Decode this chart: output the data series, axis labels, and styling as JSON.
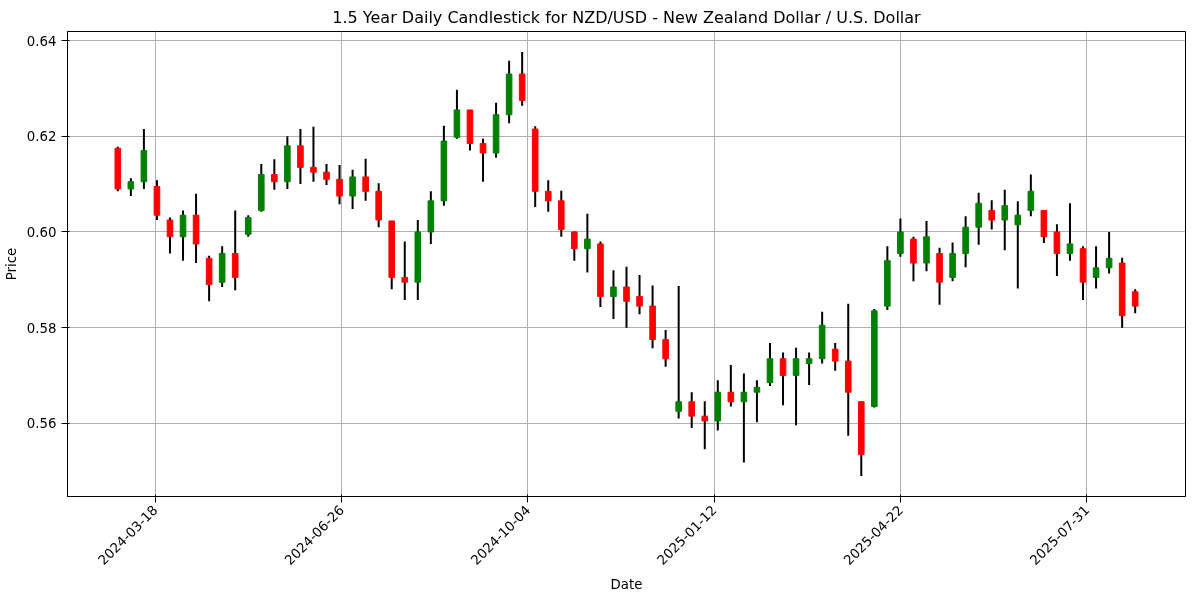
{
  "chart_data": {
    "type": "candlestick",
    "title": "1.5 Year Daily Candlestick for NZD/USD - New Zealand Dollar / U.S. Dollar",
    "xlabel": "Date",
    "ylabel": "Price",
    "x": [
      "2024-02-27",
      "2024-03-05",
      "2024-03-12",
      "2024-03-19",
      "2024-03-26",
      "2024-04-02",
      "2024-04-09",
      "2024-04-16",
      "2024-04-23",
      "2024-04-30",
      "2024-05-07",
      "2024-05-14",
      "2024-05-21",
      "2024-05-28",
      "2024-06-04",
      "2024-06-11",
      "2024-06-18",
      "2024-06-25",
      "2024-07-02",
      "2024-07-09",
      "2024-07-16",
      "2024-07-23",
      "2024-07-30",
      "2024-08-06",
      "2024-08-13",
      "2024-08-20",
      "2024-08-27",
      "2024-09-03",
      "2024-09-10",
      "2024-09-17",
      "2024-09-24",
      "2024-10-01",
      "2024-10-08",
      "2024-10-15",
      "2024-10-22",
      "2024-10-29",
      "2024-11-05",
      "2024-11-12",
      "2024-11-19",
      "2024-11-26",
      "2024-12-03",
      "2024-12-10",
      "2024-12-17",
      "2024-12-24",
      "2024-12-31",
      "2025-01-07",
      "2025-01-14",
      "2025-01-21",
      "2025-01-28",
      "2025-02-04",
      "2025-02-11",
      "2025-02-18",
      "2025-02-25",
      "2025-03-04",
      "2025-03-11",
      "2025-03-18",
      "2025-03-25",
      "2025-04-01",
      "2025-04-08",
      "2025-04-15",
      "2025-04-22",
      "2025-04-29",
      "2025-05-06",
      "2025-05-13",
      "2025-05-20",
      "2025-05-27",
      "2025-06-03",
      "2025-06-10",
      "2025-06-17",
      "2025-06-24",
      "2025-07-01",
      "2025-07-08",
      "2025-07-15",
      "2025-07-22",
      "2025-07-29",
      "2025-08-05",
      "2025-08-12",
      "2025-08-19",
      "2025-08-26"
    ],
    "ohlc": [
      [
        0.6175,
        0.6178,
        0.6085,
        0.609
      ],
      [
        0.609,
        0.6112,
        0.6075,
        0.6105
      ],
      [
        0.6105,
        0.6215,
        0.609,
        0.617
      ],
      [
        0.6095,
        0.6108,
        0.6025,
        0.6035
      ],
      [
        0.6025,
        0.603,
        0.5955,
        0.599
      ],
      [
        0.599,
        0.6045,
        0.594,
        0.6035
      ],
      [
        0.6035,
        0.608,
        0.5935,
        0.5975
      ],
      [
        0.5945,
        0.595,
        0.5855,
        0.589
      ],
      [
        0.5895,
        0.597,
        0.5885,
        0.5955
      ],
      [
        0.5955,
        0.6045,
        0.5878,
        0.5905
      ],
      [
        0.5995,
        0.6035,
        0.599,
        0.603
      ],
      [
        0.6045,
        0.6142,
        0.6042,
        0.612
      ],
      [
        0.612,
        0.6152,
        0.6088,
        0.6105
      ],
      [
        0.6105,
        0.62,
        0.609,
        0.618
      ],
      [
        0.618,
        0.6215,
        0.61,
        0.6135
      ],
      [
        0.6135,
        0.622,
        0.6105,
        0.6125
      ],
      [
        0.6125,
        0.6142,
        0.6098,
        0.611
      ],
      [
        0.611,
        0.614,
        0.6058,
        0.6075
      ],
      [
        0.6075,
        0.613,
        0.6048,
        0.6115
      ],
      [
        0.6115,
        0.6153,
        0.6065,
        0.6085
      ],
      [
        0.6085,
        0.6102,
        0.601,
        0.6025
      ],
      [
        0.6023,
        0.6023,
        0.588,
        0.5905
      ],
      [
        0.5905,
        0.598,
        0.5858,
        0.5895
      ],
      [
        0.5895,
        0.6025,
        0.5858,
        0.6
      ],
      [
        0.6,
        0.6085,
        0.5975,
        0.6065
      ],
      [
        0.6065,
        0.6222,
        0.6055,
        0.619
      ],
      [
        0.6198,
        0.6297,
        0.6195,
        0.6255
      ],
      [
        0.6255,
        0.6255,
        0.617,
        0.6185
      ],
      [
        0.6185,
        0.6195,
        0.6105,
        0.6165
      ],
      [
        0.6165,
        0.627,
        0.6155,
        0.6245
      ],
      [
        0.6245,
        0.6358,
        0.6227,
        0.633
      ],
      [
        0.633,
        0.6376,
        0.6264,
        0.6275
      ],
      [
        0.6215,
        0.6221,
        0.6052,
        0.6085
      ],
      [
        0.6085,
        0.6108,
        0.6042,
        0.6065
      ],
      [
        0.6065,
        0.6086,
        0.599,
        0.6005
      ],
      [
        0.6,
        0.6001,
        0.594,
        0.5965
      ],
      [
        0.5965,
        0.6038,
        0.5915,
        0.5985
      ],
      [
        0.5975,
        0.598,
        0.5843,
        0.5865
      ],
      [
        0.5865,
        0.592,
        0.5818,
        0.5885
      ],
      [
        0.5885,
        0.5927,
        0.58,
        0.5855
      ],
      [
        0.5865,
        0.591,
        0.5828,
        0.5845
      ],
      [
        0.5845,
        0.5888,
        0.5757,
        0.5775
      ],
      [
        0.5775,
        0.5795,
        0.5718,
        0.5735
      ],
      [
        0.5625,
        0.5887,
        0.561,
        0.5645
      ],
      [
        0.5645,
        0.5665,
        0.559,
        0.5615
      ],
      [
        0.5615,
        0.5646,
        0.5546,
        0.5605
      ],
      [
        0.5605,
        0.569,
        0.5585,
        0.5665
      ],
      [
        0.5665,
        0.5722,
        0.5635,
        0.5645
      ],
      [
        0.5645,
        0.5704,
        0.5518,
        0.5665
      ],
      [
        0.5665,
        0.569,
        0.5602,
        0.5675
      ],
      [
        0.5685,
        0.5768,
        0.5678,
        0.5735
      ],
      [
        0.5735,
        0.5748,
        0.5638,
        0.57
      ],
      [
        0.57,
        0.5758,
        0.5596,
        0.5735
      ],
      [
        0.5725,
        0.5748,
        0.568,
        0.5735
      ],
      [
        0.5735,
        0.5833,
        0.5725,
        0.5805
      ],
      [
        0.5755,
        0.5768,
        0.571,
        0.573
      ],
      [
        0.573,
        0.585,
        0.5574,
        0.5665
      ],
      [
        0.5645,
        0.5646,
        0.549,
        0.5535
      ],
      [
        0.5635,
        0.5839,
        0.5633,
        0.5835
      ],
      [
        0.5845,
        0.597,
        0.5837,
        0.594
      ],
      [
        0.5955,
        0.6028,
        0.5948,
        0.6
      ],
      [
        0.5985,
        0.599,
        0.5897,
        0.5935
      ],
      [
        0.5935,
        0.6023,
        0.5918,
        0.599
      ],
      [
        0.5955,
        0.5967,
        0.5848,
        0.5895
      ],
      [
        0.5905,
        0.5978,
        0.5897,
        0.5955
      ],
      [
        0.5955,
        0.6033,
        0.5926,
        0.601
      ],
      [
        0.601,
        0.6082,
        0.5973,
        0.606
      ],
      [
        0.6045,
        0.6066,
        0.6005,
        0.6025
      ],
      [
        0.6025,
        0.6088,
        0.5962,
        0.6055
      ],
      [
        0.6015,
        0.6064,
        0.5882,
        0.6035
      ],
      [
        0.6045,
        0.612,
        0.6033,
        0.6085
      ],
      [
        0.6045,
        0.6045,
        0.5977,
        0.599
      ],
      [
        0.6,
        0.6016,
        0.5908,
        0.5955
      ],
      [
        0.5955,
        0.606,
        0.594,
        0.5975
      ],
      [
        0.5965,
        0.597,
        0.5858,
        0.5895
      ],
      [
        0.5905,
        0.597,
        0.5882,
        0.5925
      ],
      [
        0.5925,
        0.6,
        0.5913,
        0.5945
      ],
      [
        0.5935,
        0.5946,
        0.58,
        0.5825
      ],
      [
        0.5875,
        0.588,
        0.583,
        0.5845
      ]
    ],
    "colors": [
      "#ff0000",
      "#008000",
      "#008000",
      "#ff0000",
      "#ff0000",
      "#008000",
      "#ff0000",
      "#ff0000",
      "#008000",
      "#ff0000",
      "#008000",
      "#008000",
      "#ff0000",
      "#008000",
      "#ff0000",
      "#ff0000",
      "#ff0000",
      "#ff0000",
      "#008000",
      "#ff0000",
      "#ff0000",
      "#ff0000",
      "#ff0000",
      "#008000",
      "#008000",
      "#008000",
      "#008000",
      "#ff0000",
      "#ff0000",
      "#008000",
      "#008000",
      "#ff0000",
      "#ff0000",
      "#ff0000",
      "#ff0000",
      "#ff0000",
      "#008000",
      "#ff0000",
      "#008000",
      "#ff0000",
      "#ff0000",
      "#ff0000",
      "#ff0000",
      "#008000",
      "#ff0000",
      "#ff0000",
      "#008000",
      "#ff0000",
      "#008000",
      "#008000",
      "#008000",
      "#ff0000",
      "#008000",
      "#008000",
      "#008000",
      "#ff0000",
      "#ff0000",
      "#ff0000",
      "#008000",
      "#008000",
      "#008000",
      "#ff0000",
      "#008000",
      "#ff0000",
      "#008000",
      "#008000",
      "#008000",
      "#ff0000",
      "#008000",
      "#008000",
      "#008000",
      "#ff0000",
      "#ff0000",
      "#008000",
      "#ff0000",
      "#008000",
      "#008000",
      "#ff0000",
      "#ff0000"
    ],
    "color": "#000000",
    "xlim": [
      "2024-01-31",
      "2025-09-22"
    ],
    "xticks": [
      "2024-03-18",
      "2024-06-26",
      "2024-10-04",
      "2025-01-12",
      "2025-04-22",
      "2025-07-31"
    ],
    "ylim": [
      0.5447,
      0.6419
    ],
    "yticks": [
      {
        "value": 0.56,
        "label": "0.56"
      },
      {
        "value": 0.58,
        "label": "0.58"
      },
      {
        "value": 0.6,
        "label": "0.60"
      },
      {
        "value": 0.62,
        "label": "0.62"
      },
      {
        "value": 0.64,
        "label": "0.64"
      }
    ],
    "grid": true
  }
}
